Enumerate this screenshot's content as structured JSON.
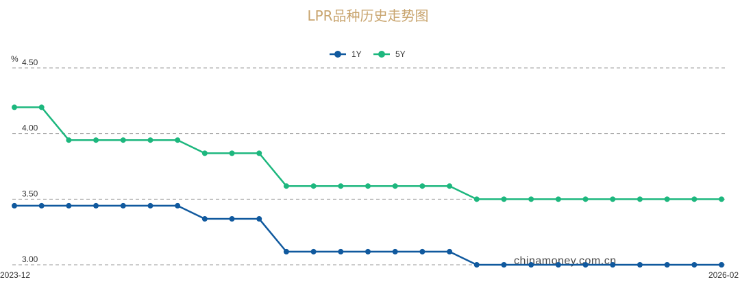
{
  "chart_data": {
    "type": "line",
    "title": "LPR品种历史走势图",
    "ylabel": "%",
    "ylim": [
      3.0,
      4.5
    ],
    "yticks": [
      "4.50",
      "4.00",
      "3.50",
      "3.00"
    ],
    "grid": true,
    "legend_position": "top-center",
    "x_labels": [
      "2023-12",
      "2026-02"
    ],
    "x": [
      "2023-12",
      "2024-01",
      "2024-02",
      "2024-03",
      "2024-04",
      "2024-05",
      "2024-06",
      "2024-07",
      "2024-08",
      "2024-09",
      "2024-10",
      "2024-11",
      "2024-12",
      "2025-01",
      "2025-02",
      "2025-03",
      "2025-04",
      "2025-05",
      "2025-06",
      "2025-07",
      "2025-08",
      "2025-09",
      "2025-10",
      "2025-11",
      "2025-12",
      "2026-01",
      "2026-02"
    ],
    "series": [
      {
        "name": "1Y",
        "color": "#10599e",
        "values": [
          3.45,
          3.45,
          3.45,
          3.45,
          3.45,
          3.45,
          3.45,
          3.35,
          3.35,
          3.35,
          3.1,
          3.1,
          3.1,
          3.1,
          3.1,
          3.1,
          3.1,
          3.0,
          3.0,
          3.0,
          3.0,
          3.0,
          3.0,
          3.0,
          3.0,
          3.0,
          3.0
        ]
      },
      {
        "name": "5Y",
        "color": "#1db77e",
        "values": [
          4.2,
          4.2,
          3.95,
          3.95,
          3.95,
          3.95,
          3.95,
          3.85,
          3.85,
          3.85,
          3.6,
          3.6,
          3.6,
          3.6,
          3.6,
          3.6,
          3.6,
          3.5,
          3.5,
          3.5,
          3.5,
          3.5,
          3.5,
          3.5,
          3.5,
          3.5,
          3.5
        ]
      }
    ],
    "watermark": "chinamoney.com.cn"
  }
}
